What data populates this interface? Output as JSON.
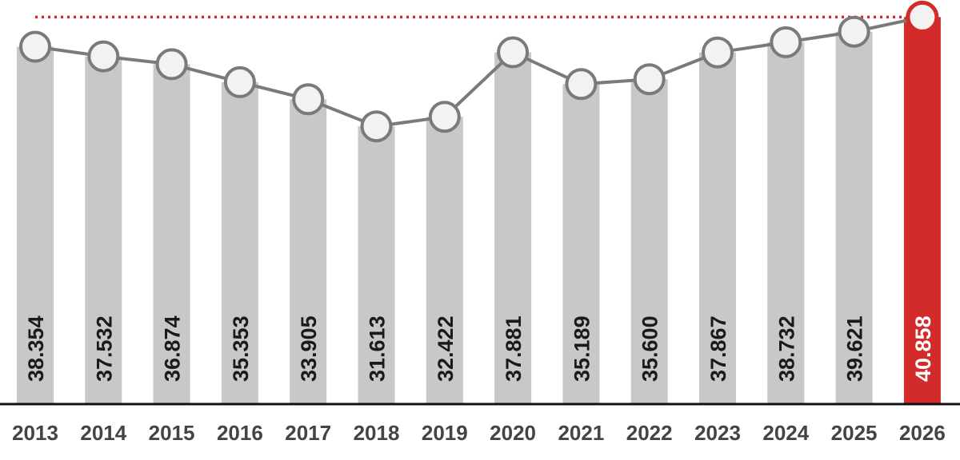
{
  "colors": {
    "bar": "#c8c8c8",
    "highlight": "#d32a2a",
    "line": "#7a7a7a",
    "marker_fill": "#f2f2f2",
    "marker_stroke": "#7a7a7a",
    "label": "#1a1a1a",
    "highlight_label": "#ffffff",
    "reference_line": "#d32a2a",
    "axis": "#111111"
  },
  "chart_data": {
    "type": "bar",
    "title": "",
    "xlabel": "",
    "ylabel": "",
    "categories": [
      "2013",
      "2014",
      "2015",
      "2016",
      "2017",
      "2018",
      "2019",
      "2020",
      "2021",
      "2022",
      "2023",
      "2024",
      "2025",
      "2026"
    ],
    "values": [
      38.354,
      37.532,
      36.874,
      35.353,
      33.905,
      31.613,
      32.422,
      37.881,
      35.189,
      35.6,
      37.867,
      38.732,
      39.621,
      40.858
    ],
    "value_labels": [
      "38.354",
      "37.532",
      "36.874",
      "35.353",
      "33.905",
      "31.613",
      "32.422",
      "37.881",
      "35.189",
      "35.600",
      "37.867",
      "38.732",
      "39.621",
      "40.858"
    ],
    "highlight_category": "2026",
    "overlay": "line with circle markers over bars",
    "reference_line": {
      "value": 40.858,
      "style": "dotted"
    },
    "grid": false,
    "legend": "none"
  }
}
